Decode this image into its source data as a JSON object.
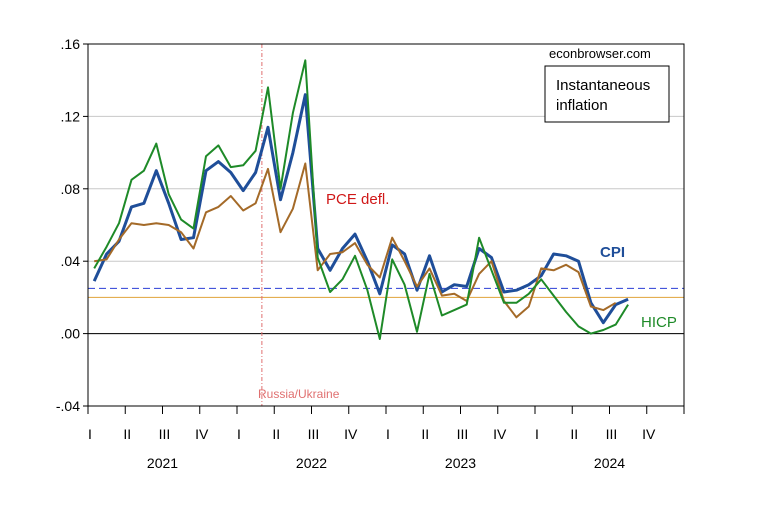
{
  "chart_data": {
    "type": "line",
    "source_label": "econbrowser.com",
    "legend_box": [
      "Instantaneous",
      "inflation"
    ],
    "annotation": "Russia/Ukraine",
    "annotation_x": 2022.167,
    "ylim": [
      -0.04,
      0.16
    ],
    "yticks": [
      -0.04,
      0.0,
      0.04,
      0.08,
      0.12,
      0.16
    ],
    "ytick_labels": [
      "-.04",
      ".00",
      ".04",
      ".08",
      ".12",
      ".16"
    ],
    "xlim": [
      2021.0,
      2025.0
    ],
    "quarter_labels": [
      "I",
      "II",
      "III",
      "IV",
      "I",
      "II",
      "III",
      "IV",
      "I",
      "II",
      "III",
      "IV",
      "I",
      "II",
      "III",
      "IV"
    ],
    "year_labels": [
      "2021",
      "2022",
      "2023",
      "2024"
    ],
    "reference_lines": [
      {
        "value": 0.0,
        "color": "#000000",
        "style": "solid"
      },
      {
        "value": 0.025,
        "color": "#2b3fd6",
        "style": "dashed"
      },
      {
        "value": 0.02,
        "color": "#e0a33a",
        "style": "solid"
      }
    ],
    "series": [
      {
        "name": "CPI",
        "color": "#1f4e99",
        "width": 3,
        "values": [
          0.029,
          0.044,
          0.051,
          0.07,
          0.072,
          0.09,
          0.072,
          0.052,
          0.053,
          0.09,
          0.095,
          0.089,
          0.079,
          0.089,
          0.114,
          0.074,
          0.1,
          0.132,
          0.047,
          0.035,
          0.047,
          0.055,
          0.04,
          0.022,
          0.049,
          0.044,
          0.024,
          0.043,
          0.023,
          0.027,
          0.026,
          0.047,
          0.042,
          0.023,
          0.024,
          0.027,
          0.032,
          0.044,
          0.043,
          0.04,
          0.017,
          0.006,
          0.016,
          0.019
        ]
      },
      {
        "name": "PCE defl.",
        "color": "#a46a28",
        "width": 2,
        "values": [
          0.04,
          0.041,
          0.052,
          0.061,
          0.06,
          0.061,
          0.06,
          0.056,
          0.047,
          0.067,
          0.07,
          0.076,
          0.068,
          0.072,
          0.091,
          0.056,
          0.069,
          0.094,
          0.035,
          0.044,
          0.045,
          0.05,
          0.038,
          0.031,
          0.053,
          0.04,
          0.026,
          0.036,
          0.021,
          0.022,
          0.018,
          0.033,
          0.04,
          0.018,
          0.009,
          0.015,
          0.036,
          0.035,
          0.038,
          0.034,
          0.015,
          0.013,
          0.017
        ]
      },
      {
        "name": "HICP",
        "color": "#1e8a28",
        "width": 2,
        "values": [
          0.036,
          0.048,
          0.061,
          0.085,
          0.09,
          0.105,
          0.077,
          0.063,
          0.058,
          0.098,
          0.104,
          0.092,
          0.093,
          0.101,
          0.136,
          0.08,
          0.122,
          0.151,
          0.042,
          0.023,
          0.03,
          0.043,
          0.024,
          -0.003,
          0.041,
          0.027,
          0.001,
          0.033,
          0.01,
          0.013,
          0.016,
          0.053,
          0.035,
          0.017,
          0.017,
          0.022,
          0.03,
          0.021,
          0.012,
          0.004,
          0.0,
          0.002,
          0.005,
          0.016
        ]
      }
    ]
  }
}
